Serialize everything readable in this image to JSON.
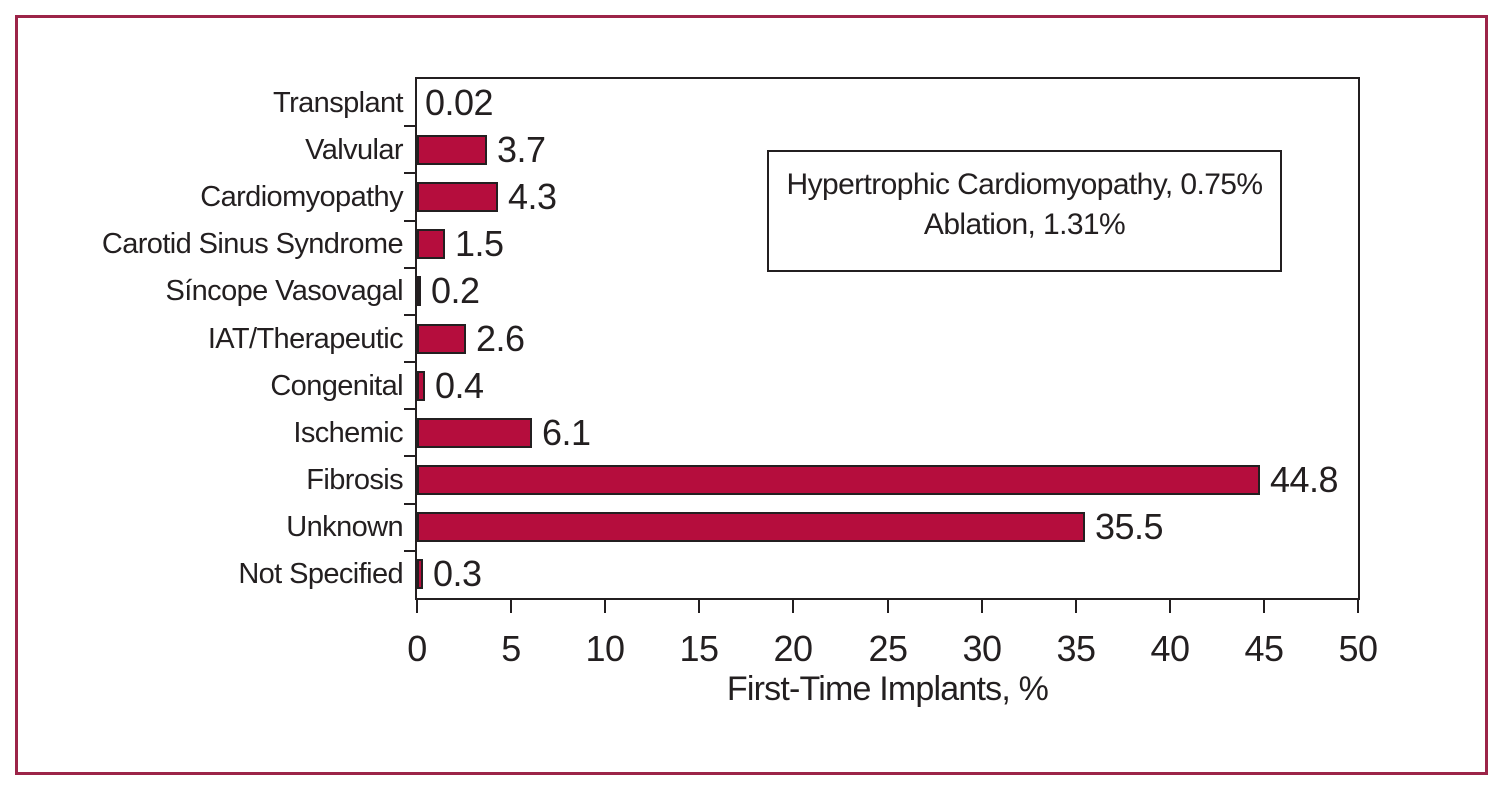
{
  "chart_data": {
    "type": "bar",
    "orientation": "horizontal",
    "title": "",
    "xlabel": "First-Time Implants, %",
    "ylabel": "",
    "categories": [
      "Transplant",
      "Valvular",
      "Cardiomyopathy",
      "Carotid Sinus Syndrome",
      "Síncope Vasovagal",
      "IAT/Therapeutic",
      "Congenital",
      "Ischemic",
      "Fibrosis",
      "Unknown",
      "Not Specified"
    ],
    "values": [
      0.02,
      3.7,
      4.3,
      1.5,
      0.2,
      2.6,
      0.4,
      6.1,
      44.8,
      35.5,
      0.3
    ],
    "value_labels": [
      "0.02",
      "3.7",
      "4.3",
      "1.5",
      "0.2",
      "2.6",
      "0.4",
      "6.1",
      "44.8",
      "35.5",
      "0.3"
    ],
    "xlim": [
      0,
      50
    ],
    "xticks": [
      0,
      5,
      10,
      15,
      20,
      25,
      30,
      35,
      40,
      45,
      50
    ],
    "grid": false,
    "legend": "none",
    "annotation": {
      "lines": [
        "Hypertrophic Cardiomyopathy, 0.75%",
        "Ablation, 1.31%"
      ]
    },
    "colors": {
      "bar_fill": "#b50d3d",
      "bar_border": "#231f20",
      "axis_frame": "#231f20",
      "outer_border": "#9c2448",
      "text": "#231f20",
      "background": "#ffffff"
    }
  }
}
